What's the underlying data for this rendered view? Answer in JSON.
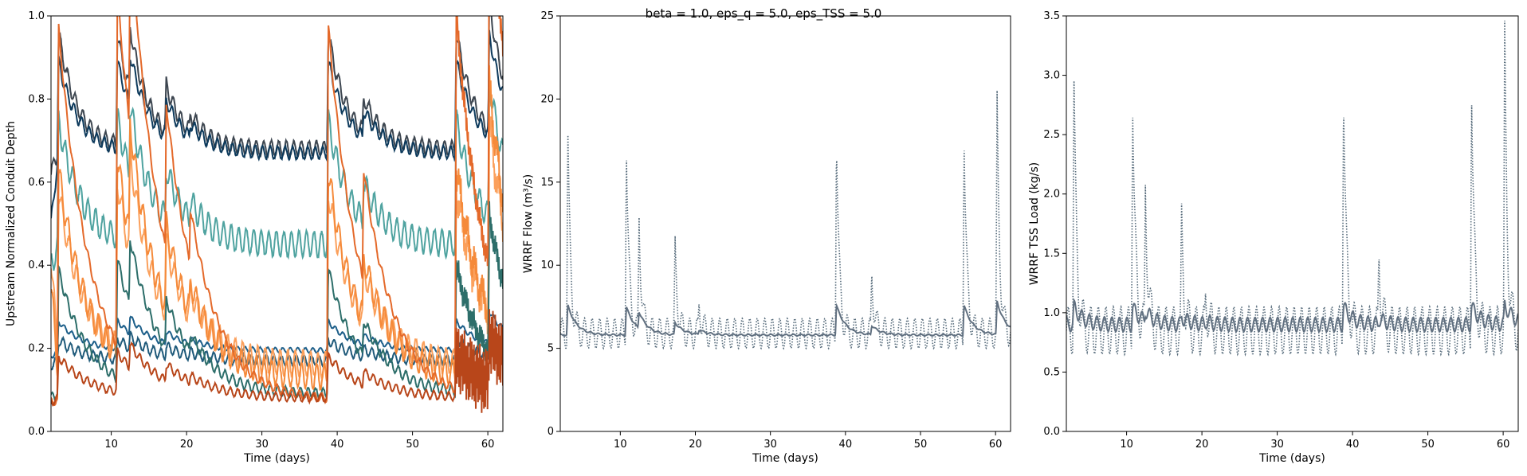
{
  "suptitle": "beta = 1.0, eps_q = 5.0, eps_TSS = 5.0",
  "chart_data": [
    {
      "type": "line",
      "xlabel": "Time (days)",
      "ylabel": "Upstream Normalized Conduit Depth",
      "xlim": [
        2,
        62
      ],
      "ylim": [
        0,
        1.0
      ],
      "xticks": [
        10,
        20,
        30,
        40,
        50,
        60
      ],
      "yticks": [
        0.0,
        0.2,
        0.4,
        0.6,
        0.8,
        1.0
      ],
      "ytick_labels": [
        "0.0",
        "0.2",
        "0.4",
        "0.6",
        "0.8",
        "1.0"
      ],
      "grid": false,
      "series": [
        {
          "base": 0.68,
          "amp": 0.018,
          "peak_scale": 0.28,
          "initial": 0.62,
          "color": "#3d4650"
        },
        {
          "base": 0.67,
          "amp": 0.015,
          "peak_scale": 0.22,
          "initial": 0.5,
          "color": "#0d3a5c"
        },
        {
          "base": 0.45,
          "amp": 0.03,
          "peak_scale": 0.3,
          "initial": 0.4,
          "color": "#4fa3a0"
        },
        {
          "base": 0.195,
          "amp": 0.006,
          "peak_scale": 0.07,
          "initial": 0.18,
          "color": "#1d5f8a"
        },
        {
          "base": 0.17,
          "amp": 0.012,
          "peak_scale": 0.05,
          "initial": 0.16,
          "color": "#1f5a7a"
        },
        {
          "base": 0.16,
          "amp": 0.03,
          "peak_scale": 0.42,
          "initial": 0.42,
          "color": "#fba05c"
        },
        {
          "base": 0.13,
          "amp": 0.03,
          "peak_scale": 0.5,
          "initial": 0.35,
          "color": "#f58a3a"
        },
        {
          "base": 0.09,
          "amp": 0.012,
          "peak_scale": 0.3,
          "initial": 0.08,
          "color": "#2d6e6a"
        },
        {
          "base": 0.075,
          "amp": 0.01,
          "peak_scale": 0.9,
          "initial": 0.07,
          "color": "#e4692a"
        },
        {
          "base": 0.08,
          "amp": 0.01,
          "peak_scale": 0.1,
          "initial": 0.07,
          "color": "#b8461a"
        }
      ]
    },
    {
      "type": "line",
      "xlabel": "Time (days)",
      "ylabel": "WRRF Flow (m³/s)",
      "xlim": [
        2,
        62
      ],
      "ylim": [
        0,
        25
      ],
      "xticks": [
        10,
        20,
        30,
        40,
        50,
        60
      ],
      "yticks": [
        0,
        5,
        10,
        15,
        20,
        25
      ],
      "ytick_labels": [
        "0",
        "5",
        "10",
        "15",
        "20",
        "25"
      ],
      "grid": false,
      "series": [
        {
          "style": "dotted",
          "base": 5.9,
          "amp": 0.9,
          "peak_scale": 12.5,
          "color": "#556a7a"
        },
        {
          "style": "solid",
          "base": 5.8,
          "amp": 0.05,
          "peak_scale": 1.8,
          "color": "#617080"
        }
      ]
    },
    {
      "type": "line",
      "xlabel": "Time (days)",
      "ylabel": "WRRF TSS Load (kg/s)",
      "xlim": [
        2,
        62
      ],
      "ylim": [
        0,
        3.5
      ],
      "xticks": [
        10,
        20,
        30,
        40,
        50,
        60
      ],
      "yticks": [
        0.0,
        0.5,
        1.0,
        1.5,
        2.0,
        2.5,
        3.0,
        3.5
      ],
      "ytick_labels": [
        "0.0",
        "0.5",
        "1.0",
        "1.5",
        "2.0",
        "2.5",
        "3.0",
        "3.5"
      ],
      "grid": false,
      "series": [
        {
          "style": "dotted",
          "base": 0.85,
          "amp": 0.2,
          "peak_scale": 2.2,
          "color": "#556a7a"
        },
        {
          "style": "solid",
          "base": 0.9,
          "amp": 0.06,
          "peak_scale": 0.15,
          "color": "#617080"
        }
      ]
    }
  ],
  "storm_events": [
    {
      "day": 3.0,
      "mag": 1.0
    },
    {
      "day": 10.8,
      "mag": 0.95
    },
    {
      "day": 12.5,
      "mag": 0.55
    },
    {
      "day": 17.3,
      "mag": 0.4
    },
    {
      "day": 20.5,
      "mag": 0.15
    },
    {
      "day": 38.8,
      "mag": 1.0
    },
    {
      "day": 43.5,
      "mag": 0.3
    },
    {
      "day": 55.8,
      "mag": 1.0
    },
    {
      "day": 60.2,
      "mag": 1.1
    }
  ]
}
